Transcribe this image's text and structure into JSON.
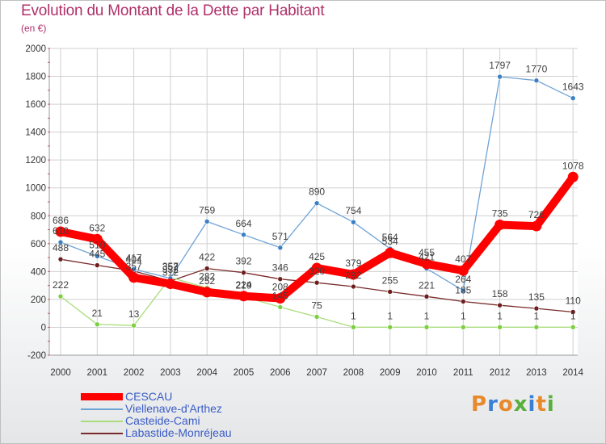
{
  "chart_title": "Evolution du Montant de la Dette par Habitant",
  "chart_subtitle": "(en €)",
  "logo": {
    "text": "Proxiti",
    "letter_colors": [
      "#e8892b",
      "#3b7fd4",
      "#e8892b",
      "#5aae3c",
      "#3b7fd4",
      "#e8892b",
      "#5aae3c"
    ]
  },
  "colors": {
    "title": "#b0306a",
    "legend_text": "#3a5cc7",
    "grid": "#cfcfcf",
    "tick_text": "#333333",
    "value_label": "#404040"
  },
  "chart_data": {
    "type": "line",
    "title": "Evolution du Montant de la Dette par Habitant",
    "subtitle": "(en €)",
    "xlabel": "",
    "ylabel": "",
    "x": [
      2000,
      2001,
      2002,
      2003,
      2004,
      2005,
      2006,
      2007,
      2008,
      2009,
      2010,
      2011,
      2012,
      2013,
      2014
    ],
    "ylim": [
      -200,
      2000
    ],
    "yticks": [
      -200,
      0,
      200,
      400,
      600,
      800,
      1000,
      1200,
      1400,
      1600,
      1800,
      2000
    ],
    "grid": true,
    "legend_position": "bottom-left",
    "series": [
      {
        "name": "CESCAU",
        "color": "#ff0000",
        "marker_color": "#ff0000",
        "line_width": "thick",
        "values": [
          686,
          632,
          357,
          312,
          252,
          224,
          208,
          425,
          379,
          534,
          455,
          407,
          735,
          726,
          1078
        ],
        "labels": [
          "686",
          "632",
          "357",
          "312",
          "252",
          "224",
          "208",
          "425",
          "379",
          "534",
          "455",
          "407",
          "735",
          "726",
          "1078"
        ]
      },
      {
        "name": "Viellenave-d'Arthez",
        "color": "#6ea3d6",
        "marker_color": "#3b7fc4",
        "line_width": "thin",
        "values": [
          610,
          510,
          417,
          352,
          759,
          664,
          571,
          890,
          754,
          564,
          421,
          264,
          1797,
          1770,
          1643
        ],
        "labels": [
          "610",
          "510",
          "417",
          "352",
          "759",
          "664",
          "571",
          "890",
          "754",
          "564",
          "421",
          "264",
          "1797",
          "1770",
          "1643"
        ]
      },
      {
        "name": "Casteide-Cami",
        "color": "#a9dd7c",
        "marker_color": "#7ccf3f",
        "line_width": "thin",
        "values": [
          222,
          21,
          13,
          357,
          282,
          219,
          145,
          75,
          1,
          1,
          1,
          1,
          1,
          1,
          1
        ],
        "labels": [
          "222",
          "21",
          "13",
          "357",
          "282",
          "219",
          "145",
          "75",
          "1",
          "1",
          "1",
          "1",
          "1",
          "1",
          "1"
        ]
      },
      {
        "name": "Labastide-Monréjeau",
        "color": "#7a2a2a",
        "marker_color": "#6b1f1f",
        "line_width": "thin",
        "values": [
          488,
          445,
          404,
          332,
          422,
          392,
          346,
          320,
          292,
          255,
          221,
          185,
          158,
          135,
          110
        ],
        "labels": [
          "488",
          "445",
          "404",
          "332",
          "422",
          "392",
          "346",
          "320",
          "292",
          "255",
          "221",
          "185",
          "158",
          "135",
          "110"
        ]
      }
    ]
  }
}
